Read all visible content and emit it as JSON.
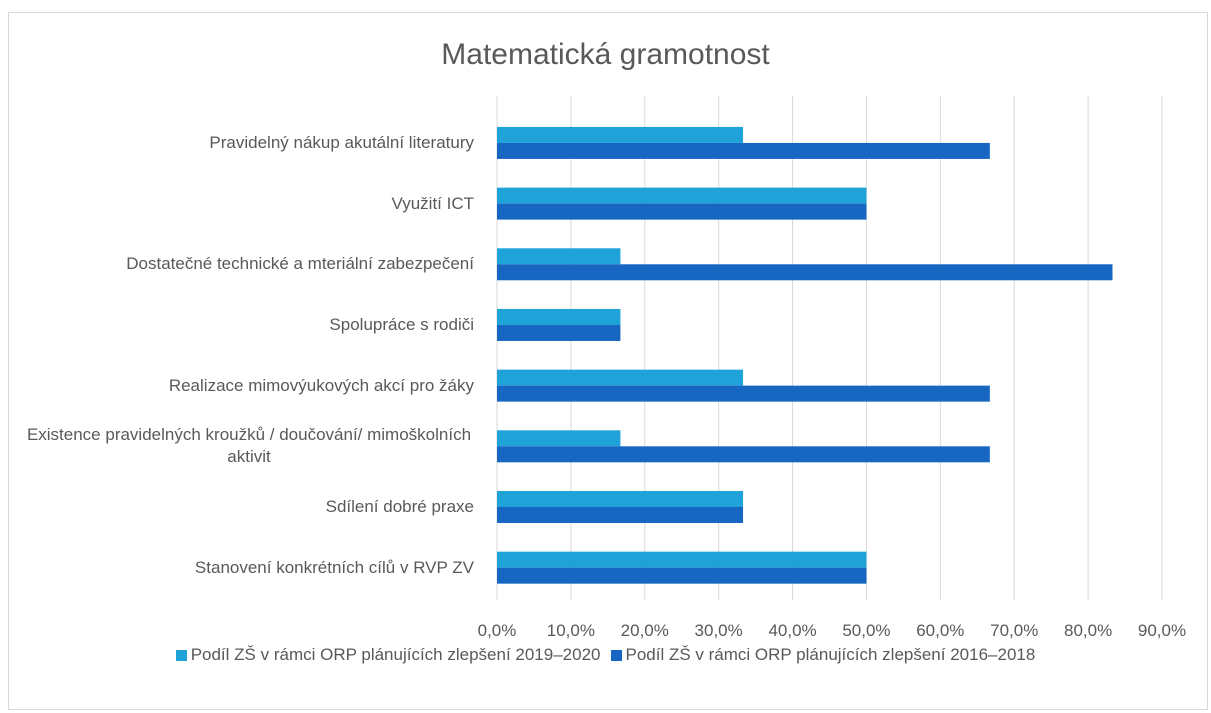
{
  "chart_data": {
    "type": "bar",
    "orientation": "horizontal",
    "title": "Matematická gramotnost",
    "categories": [
      "Pravidelný nákup akutální literatury",
      "Využití ICT",
      "Dostatečné technické a mteriální zabezpečení",
      "Spolupráce s rodiči",
      "Realizace mimovýukových akcí pro žáky",
      "Existence pravidelných kroužků / doučování/ mimoškolních aktivit",
      "Sdílení dobré praxe",
      "Stanovení konkrétních cílů v RVP ZV"
    ],
    "series": [
      {
        "name": "Podíl ZŠ v rámci ORP plánujících zlepšení 2019–2020",
        "color": "#1fa2d8",
        "values": [
          33.3,
          50,
          16.7,
          16.7,
          33.3,
          16.7,
          33.3,
          50
        ]
      },
      {
        "name": "Podíl ZŠ v rámci ORP plánujících zlepšení 2016–2018",
        "color": "#1766c2",
        "values": [
          66.7,
          50,
          83.3,
          16.7,
          66.7,
          66.7,
          33.3,
          50
        ]
      }
    ],
    "xlim": [
      0,
      90
    ],
    "xticks": [
      {
        "value": 0,
        "label": "0,0%"
      },
      {
        "value": 10,
        "label": "10,0%"
      },
      {
        "value": 20,
        "label": "20,0%"
      },
      {
        "value": 30,
        "label": "30,0%"
      },
      {
        "value": 40,
        "label": "40,0%"
      },
      {
        "value": 50,
        "label": "50,0%"
      },
      {
        "value": 60,
        "label": "60,0%"
      },
      {
        "value": 70,
        "label": "70,0%"
      },
      {
        "value": 80,
        "label": "80,0%"
      },
      {
        "value": 90,
        "label": "90,0%"
      }
    ],
    "grid": true,
    "legend": "bottom"
  }
}
